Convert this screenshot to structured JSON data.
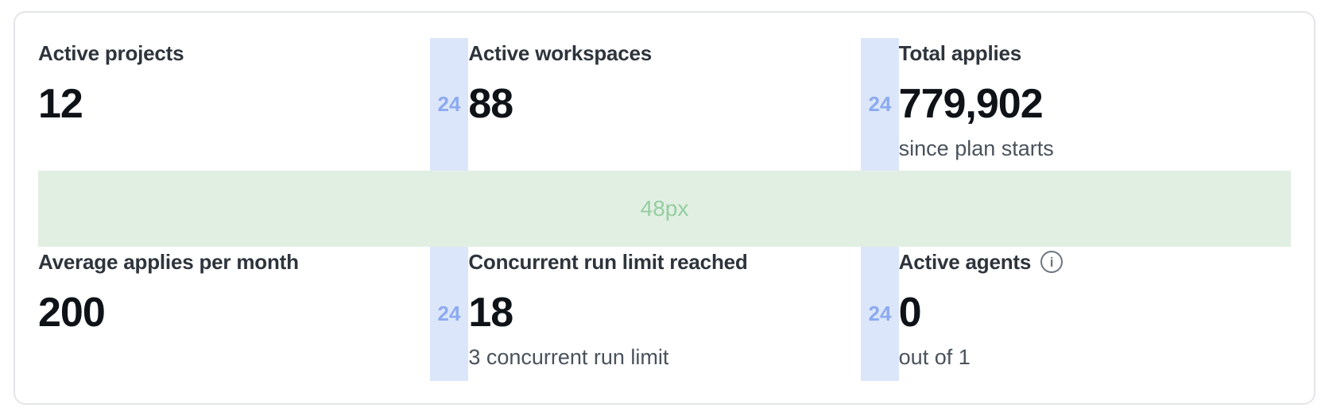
{
  "card": {
    "rows": [
      {
        "cells": [
          {
            "label": "Active projects",
            "value": "12"
          },
          {
            "label": "Active workspaces",
            "value": "88"
          },
          {
            "label": "Total applies",
            "value": "779,902",
            "sub": "since plan starts"
          }
        ]
      },
      {
        "cells": [
          {
            "label": "Average applies per month",
            "value": "200"
          },
          {
            "label": "Concurrent run limit reached",
            "value": "18",
            "sub": "3 concurrent run limit"
          },
          {
            "label": "Active agents",
            "value": "0",
            "sub": "out of 1"
          }
        ]
      }
    ]
  },
  "icons": {
    "info_glyph": "i"
  },
  "measurements": {
    "column_gap_label": "24",
    "row_gap_label": "48px",
    "colors": {
      "column_gap_bar_bg": "#dce6fa",
      "column_gap_bar_text": "#8caaf0",
      "row_gap_band_bg": "#e1efe3",
      "row_gap_band_text": "#95cd9f"
    }
  }
}
